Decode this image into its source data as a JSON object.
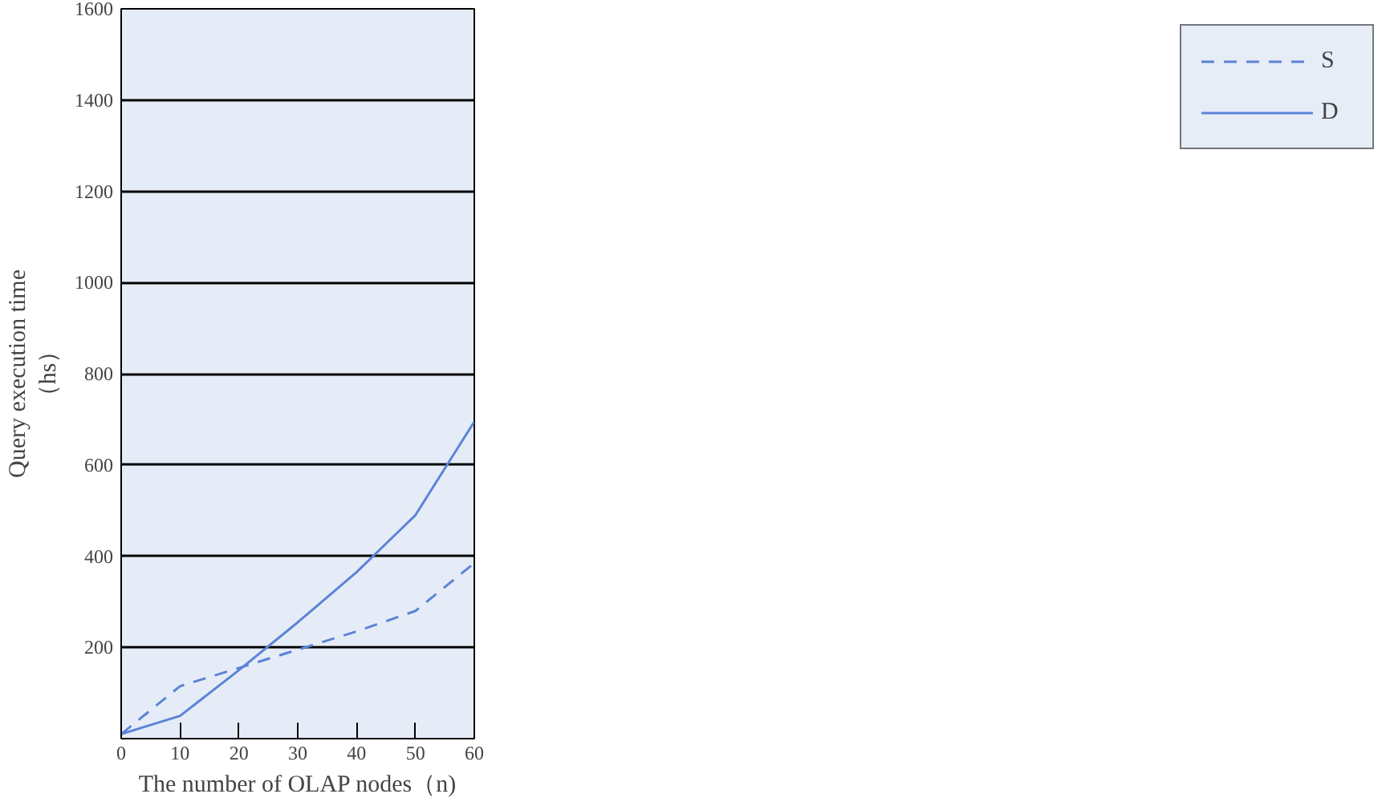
{
  "chart_data": {
    "type": "line",
    "xlabel": "The number of OLAP nodes（n)",
    "ylabel": "Query execution time\n（hs）",
    "x": [
      0,
      10,
      20,
      30,
      40,
      50,
      60
    ],
    "series": [
      {
        "name": "S",
        "color": "#5b84d6",
        "values": [
          10,
          115,
          155,
          195,
          235,
          280,
          385
        ],
        "line_style": "dashed"
      },
      {
        "name": "D",
        "color": "#5b84d6",
        "values": [
          10,
          50,
          150,
          255,
          365,
          490,
          695
        ],
        "line_style": "solid"
      }
    ],
    "xlim": [
      0,
      60
    ],
    "ylim": [
      0,
      1600
    ],
    "xticks": [
      0,
      10,
      20,
      30,
      40,
      50,
      60
    ],
    "yticks": [
      200,
      400,
      600,
      800,
      1000,
      1200,
      1400,
      1600
    ],
    "grid": "y",
    "legend": "right",
    "marker": "none"
  }
}
